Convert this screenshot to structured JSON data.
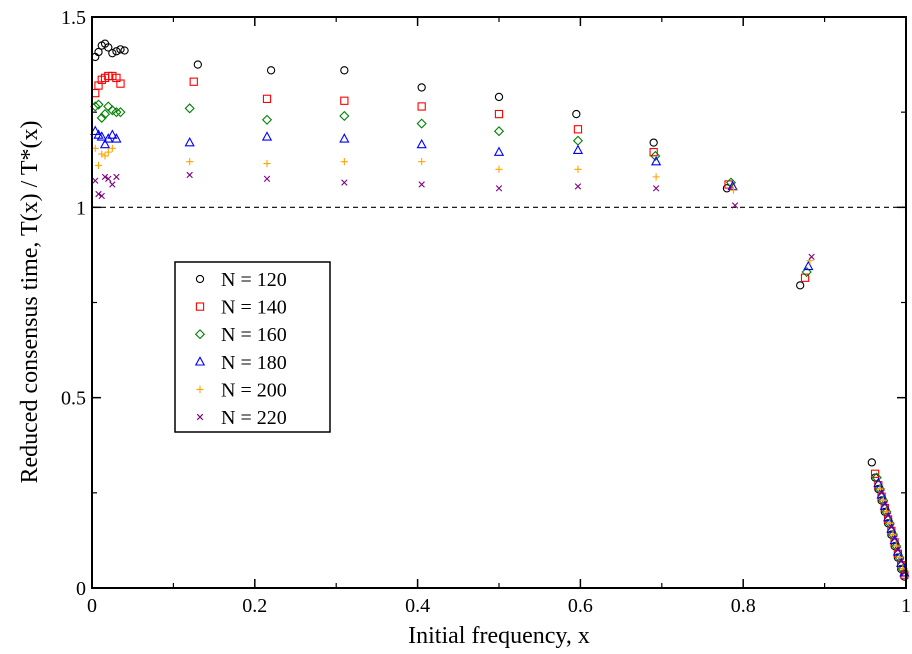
{
  "chart_data": {
    "type": "scatter",
    "xlabel": "Initial frequency, x",
    "ylabel": "Reduced consensus time, T(x) / T*(x)",
    "xlim": [
      0,
      1
    ],
    "ylim": [
      0,
      1.5
    ],
    "x_ticks": [
      0,
      0.2,
      0.4,
      0.6,
      0.8,
      1
    ],
    "x_tick_labels": [
      "0",
      "0.2",
      "0.4",
      "0.6",
      "0.8",
      "1"
    ],
    "y_ticks": [
      0,
      0.5,
      1,
      1.5
    ],
    "y_tick_labels": [
      "0",
      "0.5",
      "1",
      "1.5"
    ],
    "grid": false,
    "legend_position": "left-center",
    "reference_line": {
      "y": 1,
      "style": "dashed",
      "color": "#000000"
    },
    "series": [
      {
        "name": "N = 120",
        "marker": "circle",
        "color": "#000000",
        "points": [
          [
            0.004,
            1.395
          ],
          [
            0.008,
            1.408
          ],
          [
            0.012,
            1.425
          ],
          [
            0.016,
            1.43
          ],
          [
            0.02,
            1.42
          ],
          [
            0.025,
            1.405
          ],
          [
            0.03,
            1.41
          ],
          [
            0.035,
            1.415
          ],
          [
            0.04,
            1.412
          ],
          [
            0.13,
            1.375
          ],
          [
            0.22,
            1.36
          ],
          [
            0.31,
            1.36
          ],
          [
            0.405,
            1.315
          ],
          [
            0.5,
            1.29
          ],
          [
            0.595,
            1.245
          ],
          [
            0.69,
            1.17
          ],
          [
            0.78,
            1.05
          ],
          [
            0.87,
            0.795
          ],
          [
            0.958,
            0.33
          ],
          [
            0.962,
            0.29
          ],
          [
            0.966,
            0.26
          ],
          [
            0.97,
            0.23
          ],
          [
            0.974,
            0.2
          ],
          [
            0.978,
            0.17
          ],
          [
            0.982,
            0.14
          ],
          [
            0.986,
            0.11
          ],
          [
            0.99,
            0.08
          ],
          [
            0.994,
            0.05
          ],
          [
            0.998,
            0.03
          ]
        ]
      },
      {
        "name": "N = 140",
        "marker": "square",
        "color": "#ff0000",
        "points": [
          [
            0.004,
            1.3
          ],
          [
            0.008,
            1.32
          ],
          [
            0.012,
            1.335
          ],
          [
            0.016,
            1.34
          ],
          [
            0.02,
            1.345
          ],
          [
            0.025,
            1.345
          ],
          [
            0.03,
            1.34
          ],
          [
            0.035,
            1.325
          ],
          [
            0.125,
            1.33
          ],
          [
            0.215,
            1.285
          ],
          [
            0.31,
            1.28
          ],
          [
            0.405,
            1.265
          ],
          [
            0.5,
            1.245
          ],
          [
            0.597,
            1.205
          ],
          [
            0.69,
            1.145
          ],
          [
            0.782,
            1.06
          ],
          [
            0.876,
            0.815
          ],
          [
            0.962,
            0.3
          ],
          [
            0.966,
            0.27
          ],
          [
            0.97,
            0.24
          ],
          [
            0.974,
            0.21
          ],
          [
            0.978,
            0.18
          ],
          [
            0.982,
            0.15
          ],
          [
            0.986,
            0.12
          ],
          [
            0.99,
            0.09
          ],
          [
            0.994,
            0.06
          ],
          [
            0.998,
            0.035
          ]
        ]
      },
      {
        "name": "N = 160",
        "marker": "diamond",
        "color": "#008000",
        "points": [
          [
            0.004,
            1.265
          ],
          [
            0.008,
            1.27
          ],
          [
            0.012,
            1.235
          ],
          [
            0.016,
            1.245
          ],
          [
            0.02,
            1.265
          ],
          [
            0.025,
            1.255
          ],
          [
            0.03,
            1.25
          ],
          [
            0.035,
            1.25
          ],
          [
            0.12,
            1.26
          ],
          [
            0.215,
            1.23
          ],
          [
            0.31,
            1.24
          ],
          [
            0.405,
            1.22
          ],
          [
            0.5,
            1.2
          ],
          [
            0.597,
            1.175
          ],
          [
            0.692,
            1.135
          ],
          [
            0.785,
            1.065
          ],
          [
            0.878,
            0.83
          ],
          [
            0.964,
            0.29
          ],
          [
            0.968,
            0.26
          ],
          [
            0.972,
            0.23
          ],
          [
            0.976,
            0.2
          ],
          [
            0.98,
            0.17
          ],
          [
            0.984,
            0.14
          ],
          [
            0.988,
            0.11
          ],
          [
            0.992,
            0.08
          ],
          [
            0.996,
            0.05
          ]
        ]
      },
      {
        "name": "N = 180",
        "marker": "triangle",
        "color": "#0000ff",
        "points": [
          [
            0.004,
            1.2
          ],
          [
            0.008,
            1.19
          ],
          [
            0.012,
            1.185
          ],
          [
            0.016,
            1.165
          ],
          [
            0.02,
            1.18
          ],
          [
            0.025,
            1.19
          ],
          [
            0.03,
            1.18
          ],
          [
            0.12,
            1.17
          ],
          [
            0.215,
            1.185
          ],
          [
            0.31,
            1.18
          ],
          [
            0.405,
            1.165
          ],
          [
            0.5,
            1.145
          ],
          [
            0.597,
            1.15
          ],
          [
            0.693,
            1.12
          ],
          [
            0.787,
            1.055
          ],
          [
            0.88,
            0.845
          ],
          [
            0.966,
            0.275
          ],
          [
            0.97,
            0.245
          ],
          [
            0.974,
            0.215
          ],
          [
            0.978,
            0.185
          ],
          [
            0.982,
            0.155
          ],
          [
            0.986,
            0.125
          ],
          [
            0.99,
            0.095
          ],
          [
            0.994,
            0.065
          ],
          [
            0.998,
            0.04
          ]
        ]
      },
      {
        "name": "N = 200",
        "marker": "plus",
        "color": "#ffa500",
        "points": [
          [
            0.004,
            1.155
          ],
          [
            0.008,
            1.11
          ],
          [
            0.012,
            1.14
          ],
          [
            0.016,
            1.135
          ],
          [
            0.02,
            1.145
          ],
          [
            0.025,
            1.155
          ],
          [
            0.12,
            1.12
          ],
          [
            0.215,
            1.115
          ],
          [
            0.31,
            1.12
          ],
          [
            0.405,
            1.12
          ],
          [
            0.5,
            1.1
          ],
          [
            0.597,
            1.1
          ],
          [
            0.693,
            1.08
          ],
          [
            0.788,
            1.045
          ],
          [
            0.882,
            0.86
          ],
          [
            0.968,
            0.26
          ],
          [
            0.972,
            0.23
          ],
          [
            0.976,
            0.2
          ],
          [
            0.98,
            0.17
          ],
          [
            0.984,
            0.14
          ],
          [
            0.988,
            0.11
          ],
          [
            0.992,
            0.08
          ],
          [
            0.996,
            0.05
          ]
        ]
      },
      {
        "name": "N = 220",
        "marker": "x",
        "color": "#800080",
        "points": [
          [
            0.004,
            1.07
          ],
          [
            0.008,
            1.035
          ],
          [
            0.012,
            1.03
          ],
          [
            0.016,
            1.08
          ],
          [
            0.02,
            1.075
          ],
          [
            0.025,
            1.06
          ],
          [
            0.03,
            1.08
          ],
          [
            0.12,
            1.085
          ],
          [
            0.215,
            1.075
          ],
          [
            0.31,
            1.065
          ],
          [
            0.405,
            1.06
          ],
          [
            0.5,
            1.05
          ],
          [
            0.597,
            1.055
          ],
          [
            0.693,
            1.05
          ],
          [
            0.79,
            1.005
          ],
          [
            0.884,
            0.87
          ],
          [
            0.97,
            0.25
          ],
          [
            0.974,
            0.22
          ],
          [
            0.978,
            0.19
          ],
          [
            0.982,
            0.16
          ],
          [
            0.986,
            0.13
          ],
          [
            0.99,
            0.1
          ],
          [
            0.994,
            0.07
          ],
          [
            0.998,
            0.04
          ]
        ]
      }
    ]
  }
}
